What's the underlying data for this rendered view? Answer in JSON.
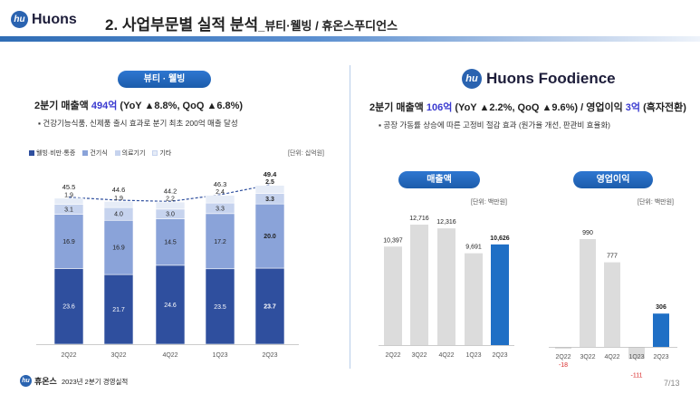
{
  "header": {
    "logo_text": "Huons",
    "logo_mark": "hu",
    "title": "2. 사업부문별 실적 분석",
    "subtitle": "_뷰티·웰빙 / 휴온스푸디언스"
  },
  "left": {
    "pill_label": "뷰티 · 웰빙",
    "summary_prefix": "2분기 매출액 ",
    "summary_value": "494억",
    "summary_suffix": " (YoY ▲8.8%, QoQ ▲6.8%)",
    "bullet": "▪ 건강기능식품, 신제품 출시 효과로 분기 최초 200억 매출 달성",
    "unit": "[단위: 십억원]"
  },
  "right": {
    "logo_text": "Huons Foodience",
    "logo_mark": "hu",
    "summary_prefix": "2분기 매출액 ",
    "summary_value": "106억",
    "summary_mid": " (YoY ▲2.2%, QoQ ▲9.6%) / 영업이익 ",
    "summary_value2": "3억",
    "summary_suffix": " (흑자전환)",
    "bullet": "▪ 공장 가동률 상승에 따른 고정비 절감 효과 (원가율 개선, 판관비 효율화)",
    "pill_sales": "매출액",
    "pill_op": "영업이익",
    "unit_sales": "[단위: 백만원]",
    "unit_op": "[단위: 백만원]"
  },
  "footer": {
    "logo_text": "휴온스",
    "logo_mark": "hu",
    "text": "2023년 2분기 경영실적",
    "page": "7/13"
  },
  "colors": {
    "brand": "#2a63b0",
    "seg1": "#2f4f9e",
    "seg2": "#8aa3d9",
    "seg3": "#c6d3ee",
    "seg4": "#e6ecf7",
    "gray_bar": "#dcdcdc",
    "highlight_bar": "#1f6fc5",
    "negative": "#d92b2b"
  },
  "chart_data": [
    {
      "type": "bar",
      "stacked": true,
      "categories": [
        "2Q22",
        "3Q22",
        "4Q22",
        "1Q23",
        "2Q23"
      ],
      "series": [
        {
          "name": "웰빙·비만·통증",
          "values": [
            23.6,
            21.7,
            24.6,
            23.5,
            23.7
          ]
        },
        {
          "name": "건기식",
          "values": [
            16.9,
            16.9,
            14.5,
            17.2,
            20.0
          ]
        },
        {
          "name": "의료기기",
          "values": [
            3.1,
            4.0,
            3.0,
            3.3,
            3.3
          ]
        },
        {
          "name": "기타",
          "values": [
            1.9,
            1.9,
            2.2,
            2.4,
            2.5
          ]
        }
      ],
      "totals": [
        45.5,
        44.6,
        44.2,
        46.3,
        49.4
      ],
      "ylim": [
        0,
        52
      ]
    },
    {
      "type": "bar",
      "categories": [
        "2Q22",
        "3Q22",
        "4Q22",
        "1Q23",
        "2Q23"
      ],
      "values": [
        10397,
        12716,
        12316,
        9691,
        10626
      ],
      "labels": [
        "10,397",
        "12,716",
        "12,316",
        "9,691",
        "10,626"
      ],
      "ylim": [
        0,
        14000
      ]
    },
    {
      "type": "bar",
      "categories": [
        "2Q22",
        "3Q22",
        "4Q22",
        "1Q23",
        "2Q23"
      ],
      "values": [
        -18,
        990,
        777,
        -111,
        306
      ],
      "labels": [
        "-18",
        "990",
        "777",
        "-111",
        "306"
      ],
      "ylim": [
        -200,
        1100
      ]
    }
  ]
}
